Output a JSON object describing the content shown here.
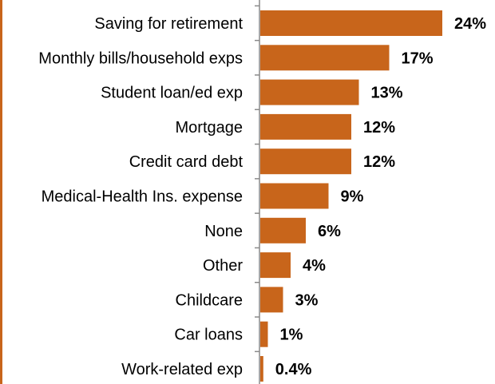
{
  "chart_data": {
    "type": "bar",
    "orientation": "horizontal",
    "categories": [
      "Saving for retirement",
      "Monthly bills/household exps",
      "Student loan/ed exp",
      "Mortgage",
      "Credit card debt",
      "Medical-Health Ins. expense",
      "None",
      "Other",
      "Childcare",
      "Car loans",
      "Work-related exp"
    ],
    "values": [
      24,
      17,
      13,
      12,
      12,
      9,
      6,
      4,
      3,
      1,
      0.4
    ],
    "value_labels": [
      "24%",
      "17%",
      "13%",
      "12%",
      "12%",
      "9%",
      "6%",
      "4%",
      "3%",
      "1%",
      "0.4%"
    ],
    "xlim": [
      0,
      24
    ],
    "bar_color": "#c8651b",
    "grid": false,
    "legend": "none"
  }
}
